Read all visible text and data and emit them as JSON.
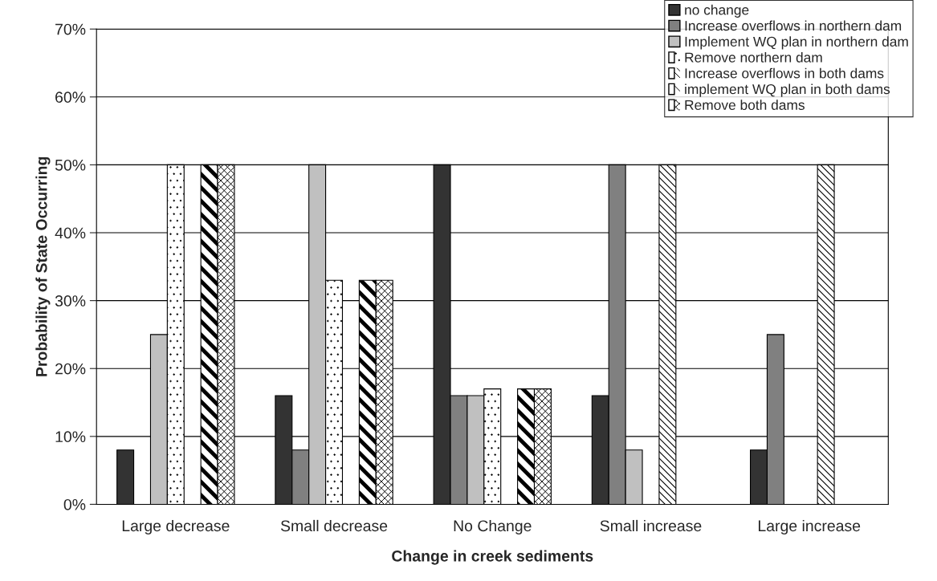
{
  "chart_data": {
    "type": "bar",
    "xlabel": "Change in creek sediments",
    "ylabel": "Probability of State Occurring",
    "categories": [
      "Large decrease",
      "Small decrease",
      "No Change",
      "Small increase",
      "Large increase"
    ],
    "series": [
      {
        "name": "no change",
        "color": "#333333",
        "values": [
          8,
          16,
          50,
          16,
          8
        ]
      },
      {
        "name": "Increase overflows in northern dam",
        "color": "#808080",
        "values": [
          null,
          8,
          16,
          50,
          25
        ]
      },
      {
        "name": "Implement WQ plan in northern dam",
        "color": "#c0c0c0",
        "values": [
          25,
          50,
          16,
          8,
          null
        ]
      },
      {
        "name": "Remove northern dam",
        "color": "#ffffff",
        "values": [
          50,
          33,
          17,
          null,
          null
        ]
      },
      {
        "name": "Increase overflows in both dams",
        "color": "#ffffff",
        "values": [
          null,
          null,
          null,
          50,
          50
        ]
      },
      {
        "name": "implement WQ plan in both dams",
        "color": "#ffffff",
        "values": [
          50,
          33,
          17,
          null,
          null
        ]
      },
      {
        "name": "Remove both dams",
        "color": "#ffffff",
        "values": [
          50,
          33,
          17,
          null,
          null
        ]
      }
    ],
    "ylim": [
      0,
      70
    ],
    "yticks": [
      {
        "value": 0,
        "label": "0%"
      },
      {
        "value": 10,
        "label": "10%"
      },
      {
        "value": 20,
        "label": "20%"
      },
      {
        "value": 30,
        "label": "30%"
      },
      {
        "value": 40,
        "label": "40%"
      },
      {
        "value": 50,
        "label": "50%"
      },
      {
        "value": 60,
        "label": "60%"
      },
      {
        "value": 70,
        "label": "70%"
      }
    ],
    "grid": "y",
    "legend": "top right"
  }
}
